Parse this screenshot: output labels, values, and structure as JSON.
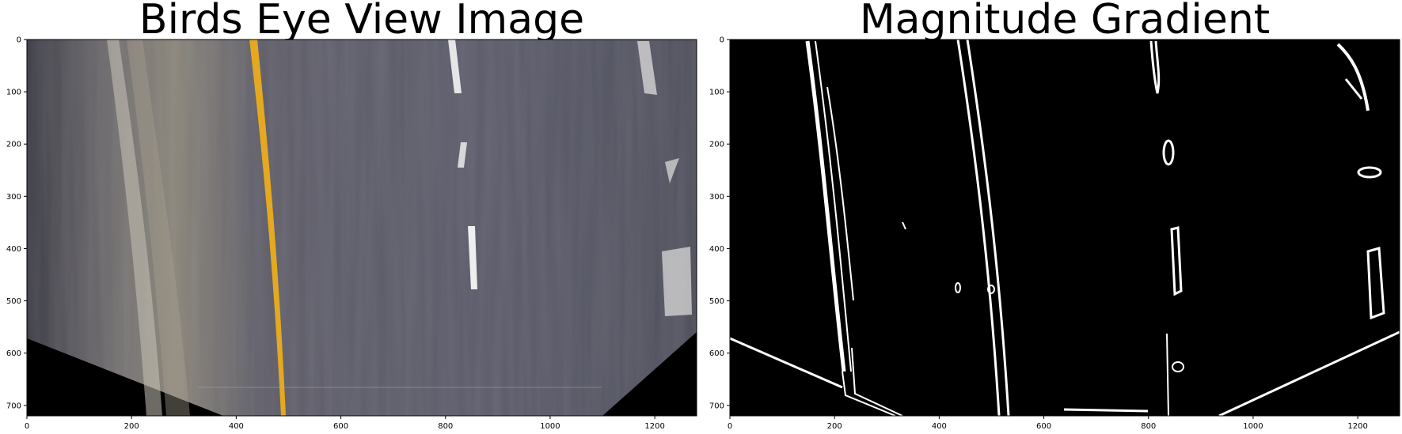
{
  "figure": {
    "panels": [
      {
        "title": "Birds Eye View Image",
        "image_type": "color road photo (warped top-down view) with yellow left lane line and dashed white right lane line",
        "xlim": [
          0,
          1280
        ],
        "ylim": [
          720,
          0
        ],
        "x_ticks": [
          "0",
          "200",
          "400",
          "600",
          "800",
          "1000",
          "1200"
        ],
        "y_ticks": [
          "0",
          "100",
          "200",
          "300",
          "400",
          "500",
          "600",
          "700"
        ]
      },
      {
        "title": "Magnitude Gradient",
        "image_type": "binary edge image (white edges on black)",
        "xlim": [
          0,
          1280
        ],
        "ylim": [
          720,
          0
        ],
        "x_ticks": [
          "0",
          "200",
          "400",
          "600",
          "800",
          "1000",
          "1200"
        ],
        "y_ticks": [
          "0",
          "100",
          "200",
          "300",
          "400",
          "500",
          "600",
          "700"
        ]
      }
    ],
    "colors": {
      "road": "#5b5b6b",
      "yellow_line": "#e4a821",
      "white_marks": "#e6e6e6",
      "edge_background": "#000000",
      "edge_foreground": "#ffffff"
    }
  }
}
